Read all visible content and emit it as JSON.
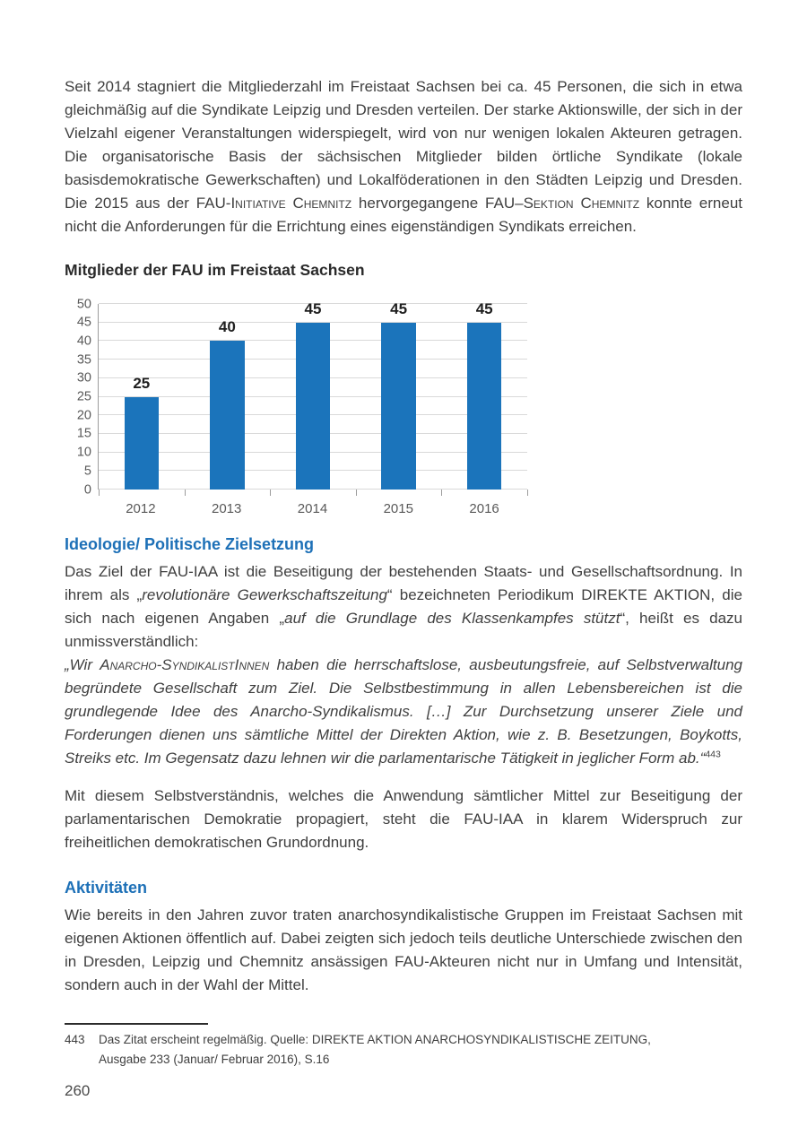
{
  "colors": {
    "accent_blue": "#1d70b7",
    "bar_blue": "#1b74bb",
    "body_text": "#3f3f3f",
    "grid_line": "#d9d9d9",
    "axis_line": "#9c9c9c"
  },
  "content": {
    "intro": {
      "runs": [
        {
          "t": "Seit 2014 stagniert die Mitgliederzahl im Freistaat Sachsen bei ca. 45 Personen, die sich in etwa gleichmäßig auf die Syndikate Leipzig und Dresden verteilen. Der starke Aktionswille, der sich in der Vielzahl eigener Veranstaltungen widerspiegelt, wird von nur wenigen lokalen Akteuren getragen. Die organisatorische Basis der sächsischen Mitglieder bilden örtliche Syndikate (lokale basisdemokratische Gewerkschaften) und Lokalföderationen in den Städten Leipzig und Dresden. Die 2015 aus der FAU-"
        },
        {
          "t": "Initiative Chemnitz",
          "s": "sc"
        },
        {
          "t": " hervorgegangene FAU–"
        },
        {
          "t": "Sektion Chemnitz",
          "s": "sc"
        },
        {
          "t": " konnte erneut nicht die Anforderungen für die Errichtung eines eigenständigen Syndikats erreichen."
        }
      ]
    },
    "ideology": {
      "heading": "Ideologie/ Politische Zielsetzung",
      "paragraph": {
        "runs": [
          {
            "t": "Das Ziel der FAU-IAA ist die Beseitigung der bestehenden Staats- und Gesellschaftsordnung. In ihrem als „"
          },
          {
            "t": "revolutionäre Gewerkschaftszeitung",
            "s": "i"
          },
          {
            "t": "“ bezeichneten Periodikum DIREKTE AKTION, die sich nach eigenen Angaben „"
          },
          {
            "t": "auf die Grundlage des Klassenkampfes stützt",
            "s": "i"
          },
          {
            "t": "“, heißt es dazu unmissverständlich:"
          }
        ]
      },
      "quote": {
        "runs": [
          {
            "t": "„Wir ",
            "s": "i"
          },
          {
            "t": "Anarcho-SyndikalistInnen",
            "s": "i sc"
          },
          {
            "t": " haben die herrschaftslose, ausbeutungsfreie, auf Selbstverwaltung begründete Gesellschaft zum Ziel. Die Selbstbestimmung in allen Lebensbereichen ist die grundlegende Idee des Anarcho-Syndikalismus. […] Zur Durchsetzung unserer Ziele und Forderungen dienen uns sämtliche Mittel der Direkten Aktion, wie z. B. Besetzungen, Boykotts, Streiks etc. Im Gegensatz dazu lehnen wir die parlamentarische Tätigkeit in jeglicher Form ab.“",
            "s": "i"
          },
          {
            "t": "443",
            "s": "sup"
          }
        ]
      },
      "conclusion": {
        "runs": [
          {
            "t": "Mit diesem Selbstverständnis, welches die Anwendung sämtlicher Mittel zur Beseitigung der parlamentarischen Demokratie propagiert, steht die FAU-IAA in klarem Widerspruch zur freiheitlichen demokratischen Grundordnung."
          }
        ]
      }
    },
    "activities": {
      "heading": "Aktivitäten",
      "paragraph": {
        "runs": [
          {
            "t": "Wie bereits in den Jahren zuvor traten anarchosyndikalistische Gruppen im Freistaat Sachsen mit eigenen Aktionen öffentlich auf. Dabei zeigten sich jedoch teils deutliche Unterschiede zwischen den in Dresden, Leipzig und Chemnitz ansässigen FAU-Akteuren nicht nur in Umfang und Intensität, sondern auch in der Wahl der Mittel."
          }
        ]
      }
    },
    "footnote": {
      "number": "443",
      "lines": [
        "Das Zitat erscheint regelmäßig. Quelle: DIREKTE AKTION ANARCHOSYNDIKALISTISCHE ZEITUNG,",
        "Ausgabe 233 (Januar/ Februar 2016), S.16"
      ]
    },
    "page_number": "260"
  },
  "chart_data": {
    "type": "bar",
    "title": "Mitglieder der FAU im Freistaat Sachsen",
    "categories": [
      "2012",
      "2013",
      "2014",
      "2015",
      "2016"
    ],
    "values": [
      25,
      40,
      45,
      45,
      45
    ],
    "xlabel": "",
    "ylabel": "",
    "ylim": [
      0,
      50
    ],
    "ytick_step": 5,
    "grid": "horizontal",
    "legend": "none",
    "value_labels": true,
    "bar_color": "#1b74bb"
  }
}
